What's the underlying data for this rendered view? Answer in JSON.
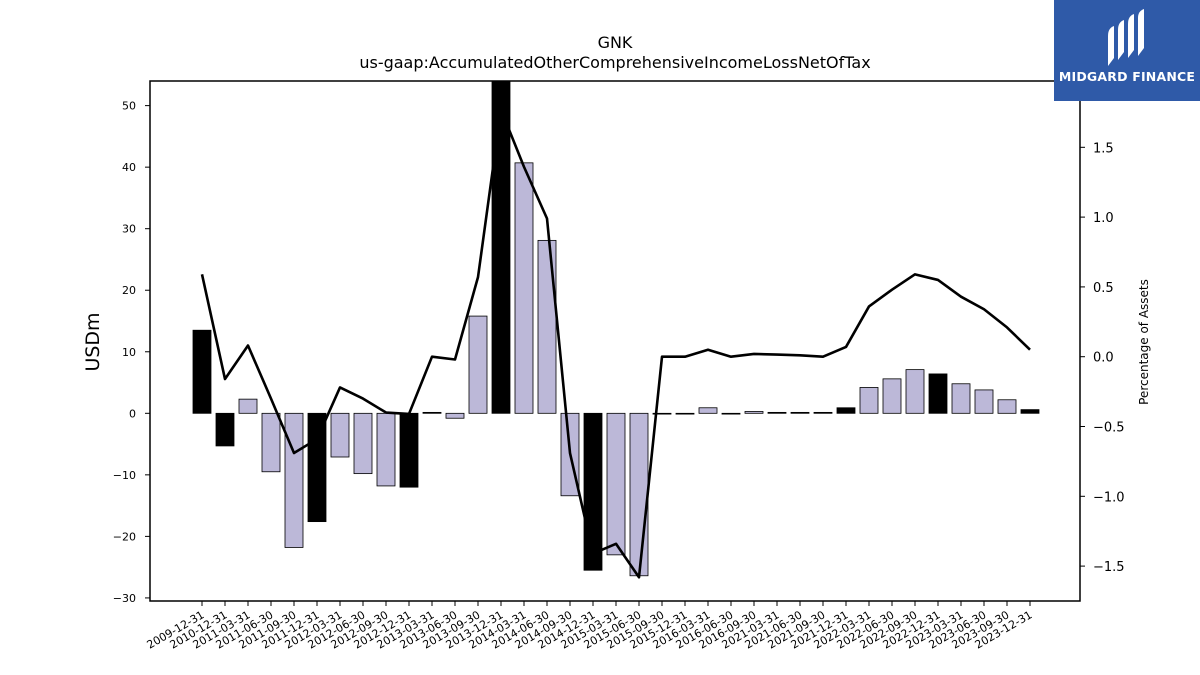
{
  "brand": {
    "name": "MIDGARD FINANCE",
    "bg_color": "#2f5aa8"
  },
  "chart_data": {
    "type": "bar",
    "title": "GNK",
    "subtitle": "us-gaap:AccumulatedOtherComprehensiveIncomeLossNetOfTax",
    "ylabel": "USDm",
    "y2label": "Percentage of Assets",
    "ylim": [
      -30.5,
      54
    ],
    "y2lim": [
      -1.75,
      1.975
    ],
    "yticks": [
      -30,
      -20,
      -10,
      0,
      10,
      20,
      30,
      40,
      50
    ],
    "y2ticks": [
      -1.5,
      -1.0,
      -0.5,
      0.0,
      0.5,
      1.0,
      1.5
    ],
    "categories": [
      "2009-12-31",
      "2010-12-31",
      "2011-03-31",
      "2011-06-30",
      "2011-09-30",
      "2011-12-31",
      "2012-03-31",
      "2012-06-30",
      "2012-09-30",
      "2012-12-31",
      "2013-03-31",
      "2013-06-30",
      "2013-09-30",
      "2013-12-31",
      "2014-03-31",
      "2014-06-30",
      "2014-09-30",
      "2014-12-31",
      "2015-03-31",
      "2015-06-30",
      "2015-09-30",
      "2015-12-31",
      "2016-03-31",
      "2016-06-30",
      "2016-09-30",
      "2021-03-31",
      "2021-06-30",
      "2021-09-30",
      "2021-12-31",
      "2022-03-31",
      "2022-06-30",
      "2022-09-30",
      "2022-12-31",
      "2023-03-31",
      "2023-06-30",
      "2023-09-30",
      "2023-12-31"
    ],
    "series": [
      {
        "type": "bar",
        "values": [
          13.5,
          -5.3,
          2.3,
          -9.5,
          -21.8,
          -17.6,
          -7.1,
          -9.8,
          -11.8,
          -12.0,
          0.15,
          -0.8,
          15.8,
          54,
          40.7,
          28.1,
          -13.4,
          -25.5,
          -23.0,
          -26.4,
          -0.1,
          -0.1,
          0.9,
          -0.1,
          0.3,
          0.15,
          0.15,
          0.15,
          0.9,
          4.2,
          5.6,
          7.1,
          6.4,
          4.8,
          3.8,
          2.2,
          0.6
        ],
        "colors": [
          "#000000",
          "#000000",
          "#bcb8d8",
          "#bcb8d8",
          "#bcb8d8",
          "#000000",
          "#bcb8d8",
          "#bcb8d8",
          "#bcb8d8",
          "#000000",
          "#000000",
          "#bcb8d8",
          "#bcb8d8",
          "#000000",
          "#bcb8d8",
          "#bcb8d8",
          "#bcb8d8",
          "#000000",
          "#bcb8d8",
          "#bcb8d8",
          "#bcb8d8",
          "#bcb8d8",
          "#bcb8d8",
          "#bcb8d8",
          "#bcb8d8",
          "#000000",
          "#000000",
          "#000000",
          "#000000",
          "#bcb8d8",
          "#bcb8d8",
          "#bcb8d8",
          "#000000",
          "#bcb8d8",
          "#bcb8d8",
          "#bcb8d8",
          "#000000"
        ]
      },
      {
        "type": "line",
        "axis": "right",
        "color": "#000000",
        "values": [
          0.59,
          -0.16,
          0.08,
          -0.3,
          -0.69,
          -0.59,
          -0.22,
          -0.3,
          -0.4,
          -0.41,
          0.0,
          -0.02,
          0.57,
          1.77,
          1.36,
          0.99,
          -0.69,
          -1.41,
          -1.34,
          -1.58,
          0.0,
          0.0,
          0.05,
          0.0,
          0.02,
          0.015,
          0.01,
          0.0,
          0.07,
          0.36,
          0.48,
          0.59,
          0.55,
          0.43,
          0.34,
          0.21,
          0.05
        ]
      }
    ],
    "grid": false,
    "legend": "none"
  }
}
